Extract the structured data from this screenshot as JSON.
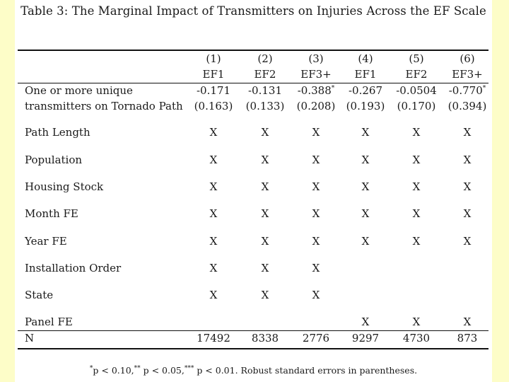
{
  "title": "Table 3: The Marginal Impact of Transmitters on Injuries Across the EF Scale",
  "column_numbers": [
    "(1)",
    "(2)",
    "(3)",
    "(4)",
    "(5)",
    "(6)"
  ],
  "column_headers": [
    "EF1",
    "EF2",
    "EF3+",
    "EF1",
    "EF2",
    "EF3+"
  ],
  "coef_row": {
    "label_line1": "One or more unique",
    "label_line2": "transmitters on Tornado Path",
    "estimates": [
      "-0.171",
      "-0.131",
      "-0.388",
      "-0.267",
      "-0.0504",
      "-0.770"
    ],
    "stars": [
      "",
      "",
      "*",
      "",
      "",
      "*"
    ],
    "std_errors": [
      "(0.163)",
      "(0.133)",
      "(0.208)",
      "(0.193)",
      "(0.170)",
      "(0.394)"
    ]
  },
  "control_rows": [
    {
      "label": "Path Length",
      "marks": [
        "X",
        "X",
        "X",
        "X",
        "X",
        "X"
      ]
    },
    {
      "label": "Population",
      "marks": [
        "X",
        "X",
        "X",
        "X",
        "X",
        "X"
      ]
    },
    {
      "label": "Housing Stock",
      "marks": [
        "X",
        "X",
        "X",
        "X",
        "X",
        "X"
      ]
    },
    {
      "label": "Month FE",
      "marks": [
        "X",
        "X",
        "X",
        "X",
        "X",
        "X"
      ]
    },
    {
      "label": "Year FE",
      "marks": [
        "X",
        "X",
        "X",
        "X",
        "X",
        "X"
      ]
    },
    {
      "label": "Installation Order",
      "marks": [
        "X",
        "X",
        "X",
        "",
        "",
        ""
      ]
    },
    {
      "label": "State",
      "marks": [
        "X",
        "X",
        "X",
        "",
        "",
        ""
      ]
    },
    {
      "label": "Panel FE",
      "marks": [
        "",
        "",
        "",
        "X",
        "X",
        "X"
      ]
    }
  ],
  "n_row": {
    "label": "N",
    "values": [
      "17492",
      "8338",
      "2776",
      "9297",
      "4730",
      "873"
    ]
  },
  "footnote": {
    "s1": "*",
    "t1": "p < 0.10,",
    "s2": "**",
    "t2": "p < 0.05,",
    "s3": "***",
    "t3": "p < 0.01. Robust standard errors in parentheses."
  }
}
